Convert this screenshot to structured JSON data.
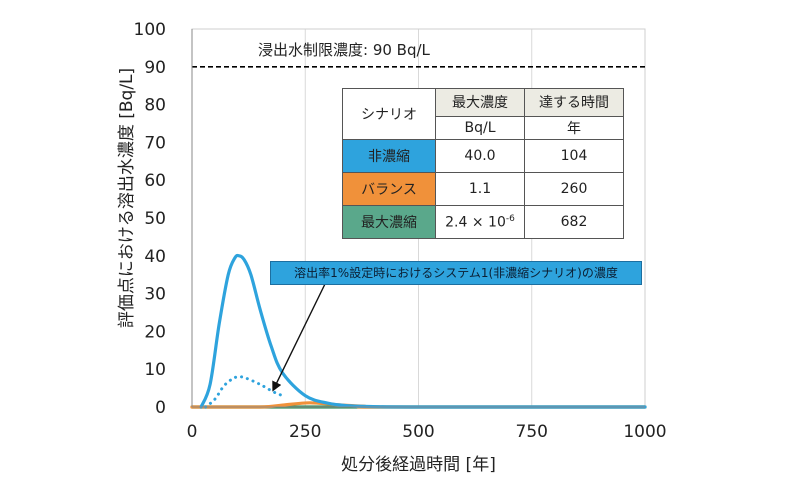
{
  "chart_data": {
    "type": "line",
    "xlabel": "処分後経過時間 [年]",
    "ylabel": "評価点における溶出水濃度 [Bq/L]",
    "xlim": [
      0,
      1000
    ],
    "ylim": [
      0,
      100
    ],
    "xticks": [
      0,
      250,
      500,
      750,
      1000
    ],
    "yticks": [
      0,
      10,
      20,
      30,
      40,
      50,
      60,
      70,
      80,
      90,
      100
    ],
    "grid": "vertical",
    "reference_line": {
      "y": 90,
      "label": "浸出水制限濃度: 90 Bq/L",
      "style": "dashed"
    },
    "series": [
      {
        "name": "非濃縮",
        "color": "#2ea3dd",
        "style": "solid",
        "x": [
          20,
          40,
          60,
          80,
          95,
          104,
          115,
          130,
          150,
          175,
          200,
          250,
          300,
          350,
          400,
          500,
          1000
        ],
        "y": [
          0,
          6,
          22,
          35,
          39.5,
          40.0,
          39,
          35,
          26,
          16,
          9,
          3,
          1,
          0.3,
          0.1,
          0,
          0
        ]
      },
      {
        "name": "溶出率1%設定時におけるシステム1(非濃縮シナリオ)の濃度",
        "color": "#2ea3dd",
        "style": "dotted",
        "x": [
          30,
          50,
          70,
          90,
          104,
          120,
          150,
          180,
          200
        ],
        "y": [
          0,
          2,
          5.5,
          7.5,
          8,
          7.6,
          6,
          4,
          3
        ]
      },
      {
        "name": "バランス",
        "color": "#f0913a",
        "style": "solid",
        "x": [
          0,
          150,
          200,
          260,
          320,
          380,
          420,
          1000
        ],
        "y": [
          0,
          0,
          0.5,
          1.1,
          0.6,
          0.2,
          0,
          0
        ]
      },
      {
        "name": "最大濃縮",
        "color": "#3a8f5f",
        "style": "solid",
        "x": [
          0,
          682,
          1000
        ],
        "y": [
          0,
          2.4e-06,
          0
        ]
      }
    ]
  },
  "callout": {
    "text": "溶出率1%設定時におけるシステム1(非濃縮シナリオ)の濃度",
    "arrow_target": {
      "x": 175,
      "y": 4
    }
  },
  "table": {
    "header": {
      "scenario": "シナリオ",
      "max_conc": "最大濃度",
      "time": "達する時間"
    },
    "units": {
      "max_conc": "Bq/L",
      "time": "年"
    },
    "rows": [
      {
        "scenario": "非濃縮",
        "max_conc": "40.0",
        "time": "104",
        "color": "#2ea3dd"
      },
      {
        "scenario": "バランス",
        "max_conc": "1.1",
        "time": "260",
        "color": "#f0913a"
      },
      {
        "scenario": "最大濃縮",
        "max_conc_base": "2.4 × 10",
        "max_conc_exp": "-6",
        "time": "682",
        "color": "#5aa88b"
      }
    ]
  }
}
